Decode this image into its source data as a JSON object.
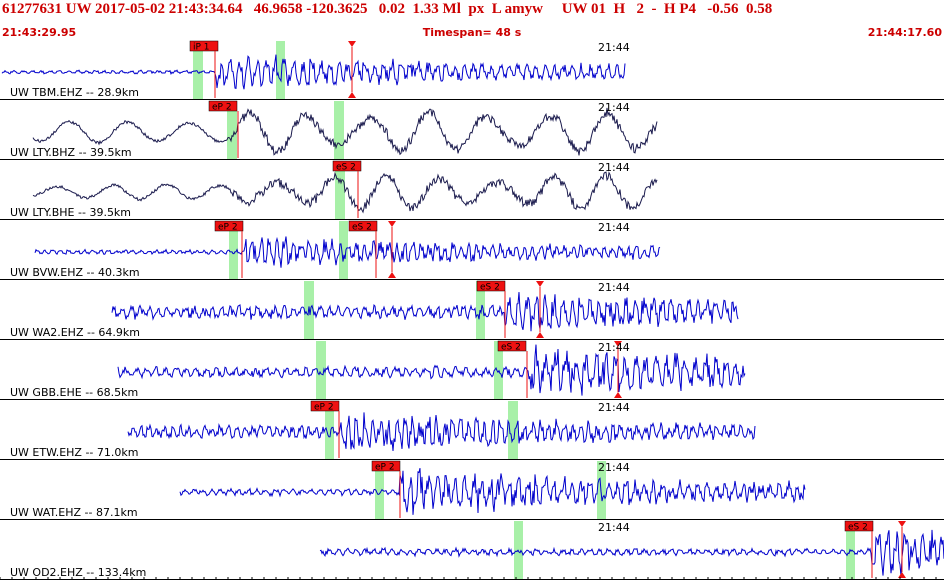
{
  "header": {
    "event_line": "61277631 UW 2017-05-02 21:43:34.64   46.9658 -120.3625   0.02  1.33 Ml  px  L amyw     UW 01  H   2  -  H P4   -0.56  0.58",
    "start_time": "21:43:29.95",
    "timespan": "Timespan=  48 s",
    "end_time": "21:44:17.60"
  },
  "colors": {
    "header_text": "#cc0000",
    "waveform_primary": "#0000cc",
    "waveform_broadband": "#1a1a4d",
    "pick_flag": "#ee1111",
    "pick_line": "#ee1111",
    "window_band": "#a8f0a8",
    "divider": "#000000"
  },
  "minute_mark_label": "21:44",
  "traces": [
    {
      "label": "UW TBM.EHZ -- 28.9km",
      "color": "waveform_primary",
      "p_pick": "iP 1",
      "s_pick": ""
    },
    {
      "label": "UW LTY.BHZ -- 39.5km",
      "color": "waveform_broadband",
      "p_pick": "eP 2",
      "s_pick": ""
    },
    {
      "label": "UW LTY.BHE -- 39.5km",
      "color": "waveform_broadband",
      "p_pick": "",
      "s_pick": "eS 2"
    },
    {
      "label": "UW BVW.EHZ -- 40.3km",
      "color": "waveform_primary",
      "p_pick": "eP 2",
      "s_pick": "eS 2"
    },
    {
      "label": "UW WA2.EHZ -- 64.9km",
      "color": "waveform_primary",
      "p_pick": "",
      "s_pick": "eS 2"
    },
    {
      "label": "UW GBB.EHE -- 68.5km",
      "color": "waveform_primary",
      "p_pick": "",
      "s_pick": "eS 2"
    },
    {
      "label": "UW ETW.EHZ -- 71.0km",
      "color": "waveform_primary",
      "p_pick": "eP 2",
      "s_pick": ""
    },
    {
      "label": "UW WAT.EHZ -- 87.1km",
      "color": "waveform_primary",
      "p_pick": "eP 2",
      "s_pick": ""
    },
    {
      "label": "UW OD2.EHZ -- 133.4km",
      "color": "waveform_primary",
      "p_pick": "",
      "s_pick": "eS 2"
    }
  ]
}
